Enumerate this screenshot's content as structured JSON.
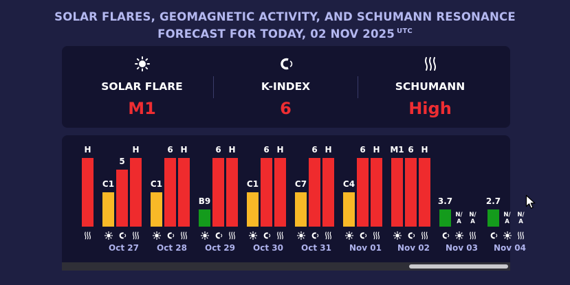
{
  "title": {
    "line1": "SOLAR FLARES, GEOMAGNETIC ACTIVITY, AND SCHUMANN RESONANCE",
    "line2": "FORECAST FOR TODAY, 02 NOV 2025",
    "utc": "UTC"
  },
  "summary": {
    "solar": {
      "label": "SOLAR FLARE",
      "value": "M1",
      "icon": "sun-icon"
    },
    "kindex": {
      "label": "K-INDEX",
      "value": "6",
      "icon": "magnet-icon"
    },
    "schumann": {
      "label": "SCHUMANN",
      "value": "High",
      "icon": "waves-icon"
    }
  },
  "colors": {
    "background": "#1e1f42",
    "panel": "#13132f",
    "red": "#ef2b2d",
    "yellow": "#f8b927",
    "green": "#149b1c",
    "title": "#b4b8f0",
    "date": "#aeb2ec"
  },
  "chart_data": {
    "type": "bar",
    "title": "",
    "series": [
      {
        "name": "Solar flare",
        "icon": "sun-icon",
        "scale": {
          "B": 0.25,
          "C": 0.5,
          "M": 1.0
        }
      },
      {
        "name": "K-index",
        "icon": "magnet-icon",
        "max": 6
      },
      {
        "name": "Schumann",
        "icon": "waves-icon",
        "scale": {
          "High": 1.0
        }
      }
    ],
    "days": [
      {
        "date": "",
        "partial": true,
        "flare": null,
        "kindex": null,
        "schumann": "H"
      },
      {
        "date": "Oct 27",
        "flare": "C1",
        "kindex": "5",
        "schumann": "H"
      },
      {
        "date": "Oct 28",
        "flare": "C1",
        "kindex": "6",
        "schumann": "H"
      },
      {
        "date": "Oct 29",
        "flare": "B9",
        "kindex": "6",
        "schumann": "H"
      },
      {
        "date": "Oct 30",
        "flare": "C1",
        "kindex": "6",
        "schumann": "H"
      },
      {
        "date": "Oct 31",
        "flare": "C7",
        "kindex": "6",
        "schumann": "H"
      },
      {
        "date": "Nov 01",
        "flare": "C4",
        "kindex": "6",
        "schumann": "H"
      },
      {
        "date": "Nov 02",
        "flare": "M1",
        "kindex": "6",
        "schumann": "H"
      },
      {
        "date": "Nov 03",
        "flare": null,
        "kindex": "3.7",
        "schumann": "N/A"
      },
      {
        "date": "Nov 04",
        "flare": null,
        "kindex": "2.7",
        "schumann": "N/A"
      }
    ]
  }
}
